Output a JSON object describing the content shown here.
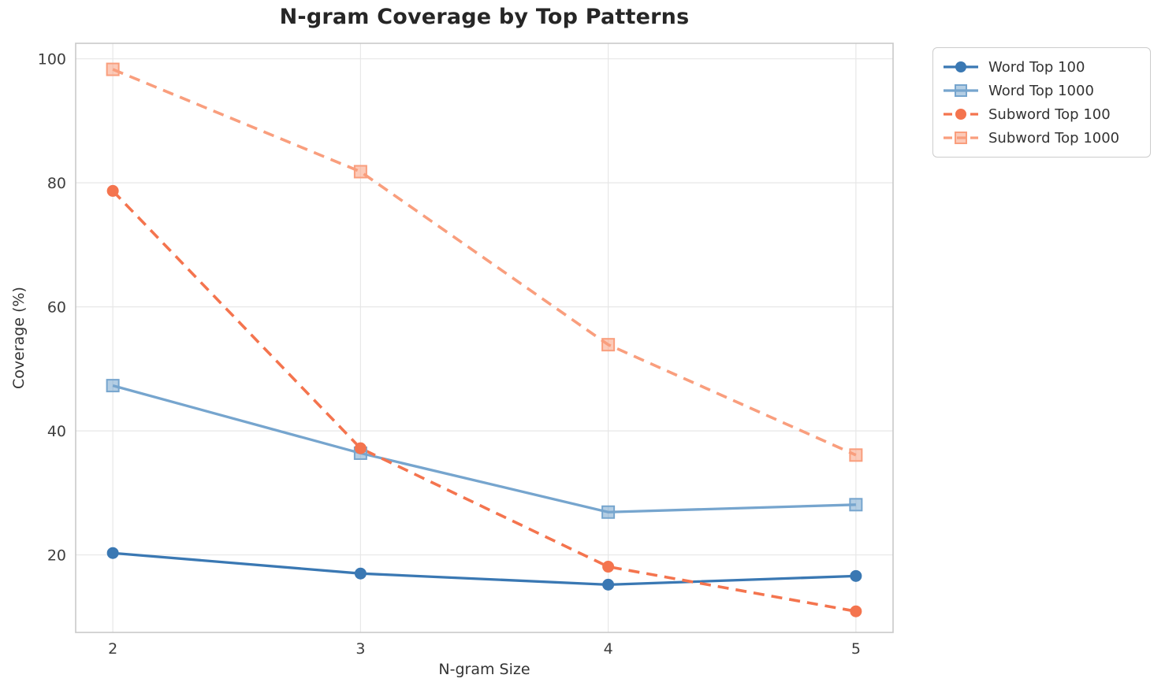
{
  "chart_data": {
    "type": "line",
    "title": "N-gram Coverage by Top Patterns",
    "xlabel": "N-gram Size",
    "ylabel": "Coverage (%)",
    "x": [
      2,
      3,
      4,
      5
    ],
    "xticks": [
      "2",
      "3",
      "4",
      "5"
    ],
    "yticks": [
      "20",
      "40",
      "60",
      "80",
      "100"
    ],
    "ytick_values": [
      20,
      40,
      60,
      80,
      100
    ],
    "xlim": [
      1.85,
      5.15
    ],
    "ylim": [
      7.5,
      102.5
    ],
    "grid": true,
    "legend_position": "outside-top-right",
    "series": [
      {
        "name": "Word Top 100",
        "values": [
          20.3,
          17.0,
          15.2,
          16.6
        ],
        "color": "#3a78b3",
        "marker": "circle",
        "line": "solid"
      },
      {
        "name": "Word Top 1000",
        "values": [
          47.3,
          36.4,
          26.9,
          28.1
        ],
        "color": "#76a5ce",
        "marker": "square",
        "line": "solid"
      },
      {
        "name": "Subword Top 100",
        "values": [
          78.7,
          37.2,
          18.1,
          10.9
        ],
        "color": "#f4744e",
        "marker": "circle",
        "line": "dashed"
      },
      {
        "name": "Subword Top 1000",
        "values": [
          98.3,
          81.8,
          53.9,
          36.1
        ],
        "color": "#f99e7d",
        "marker": "square",
        "line": "dashed"
      }
    ]
  },
  "style": {
    "grid_color": "#e7e7e7",
    "spine_color": "#c9c9c9",
    "tick_color": "#3d3d3d",
    "title_color": "#262626",
    "label_color": "#333333"
  }
}
